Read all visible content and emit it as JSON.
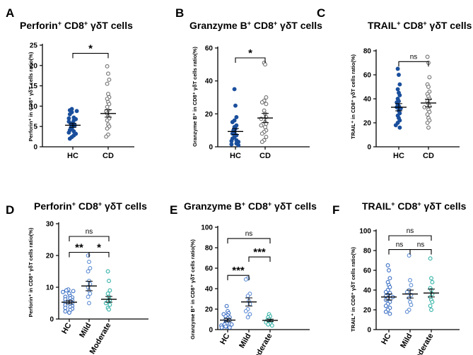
{
  "chart_data": [
    {
      "type": "scatter",
      "panel": "A",
      "title": [
        "Perforin",
        "+",
        " CD8",
        "+",
        " γδT cells"
      ],
      "ylabel": "Perforin⁺ in CD8⁺ γδT cells ratio(%)",
      "categories": [
        "HC",
        "CD"
      ],
      "ylim": [
        0,
        25
      ],
      "yticks": [
        0,
        5,
        10,
        15,
        20,
        25
      ],
      "rotated_labels": false,
      "series": [
        {
          "name": "HC",
          "mean": 5.3,
          "sem": 0.5,
          "color": "#1a4f9c",
          "fill": true,
          "values": [
            9.3,
            9,
            8.8,
            8.5,
            8,
            7.2,
            7,
            6.8,
            6.5,
            6.2,
            5.9,
            5.6,
            5.3,
            5,
            4.7,
            4.4,
            4.1,
            3.8,
            3.5,
            3.2,
            2.8,
            2.4,
            2
          ]
        },
        {
          "name": "CD",
          "mean": 8.2,
          "sem": 0.9,
          "color": "#707070",
          "fill": false,
          "values": [
            19.8,
            18,
            16.5,
            15.5,
            13,
            12.2,
            11.8,
            11,
            10.5,
            9.8,
            9,
            8.7,
            8.2,
            7.5,
            7,
            6.5,
            5.5,
            5,
            4.5,
            3,
            2.5
          ]
        }
      ],
      "comparisons": [
        {
          "from": 0,
          "to": 1,
          "label": "*",
          "y": 23
        }
      ]
    },
    {
      "type": "scatter",
      "panel": "B",
      "title": [
        "Granzyme B",
        "+",
        " CD8",
        "+",
        " γδT cells"
      ],
      "ylabel": "Granzyme B⁺ in CD8⁺ γδT cells ratio(%)",
      "categories": [
        "HC",
        "CD"
      ],
      "ylim": [
        0,
        60
      ],
      "yticks": [
        0,
        20,
        40,
        60
      ],
      "rotated_labels": false,
      "series": [
        {
          "name": "HC",
          "mean": 9.3,
          "sem": 1.8,
          "color": "#1a4f9c",
          "fill": true,
          "values": [
            35,
            25,
            18,
            16,
            15,
            13,
            12,
            11,
            10,
            9,
            8,
            7,
            6,
            5,
            4,
            3.5,
            3,
            2,
            1.5,
            1
          ]
        },
        {
          "name": "CD",
          "mean": 17.5,
          "sem": 2.8,
          "color": "#707070",
          "fill": false,
          "values": [
            51,
            50,
            30,
            28,
            27,
            26,
            22,
            20,
            18,
            17,
            15,
            14,
            13,
            12,
            10,
            9,
            8,
            6,
            4,
            3
          ]
        }
      ],
      "comparisons": [
        {
          "from": 0,
          "to": 1,
          "label": "*",
          "y": 54
        }
      ]
    },
    {
      "type": "scatter",
      "panel": "C",
      "title": [
        "TRAIL",
        "+",
        " CD8",
        "+",
        " γδT cells"
      ],
      "ylabel": "TRAIL⁺ in CD8⁺ γδT cells ratio(%)",
      "categories": [
        "HC",
        "CD"
      ],
      "ylim": [
        0,
        80
      ],
      "yticks": [
        0,
        20,
        40,
        60,
        80
      ],
      "rotated_labels": false,
      "series": [
        {
          "name": "HC",
          "mean": 33,
          "sem": 3,
          "color": "#1a4f9c",
          "fill": true,
          "values": [
            65,
            60,
            52,
            48,
            45,
            43,
            40,
            38,
            37,
            35,
            34,
            33,
            32,
            30,
            28,
            26,
            24,
            22,
            20,
            18,
            16
          ]
        },
        {
          "name": "CD",
          "mean": 36.5,
          "sem": 3.2,
          "color": "#707070",
          "fill": false,
          "values": [
            75,
            70,
            58,
            52,
            50,
            46,
            44,
            42,
            40,
            38,
            36,
            34,
            33,
            31,
            29,
            27,
            24,
            22,
            20,
            16
          ]
        }
      ],
      "comparisons": [
        {
          "from": 0,
          "to": 1,
          "label": "ns",
          "y": 71
        }
      ]
    },
    {
      "type": "scatter",
      "panel": "D",
      "title": [
        "Perforin",
        "+",
        " CD8",
        "+",
        " γδT cells"
      ],
      "ylabel": "Perforin⁺ in CD8⁺ γδT cells ratio(%)",
      "categories": [
        "HC",
        "Mild",
        "Moderate"
      ],
      "ylim": [
        0,
        30
      ],
      "yticks": [
        0,
        10,
        20,
        30
      ],
      "rotated_labels": true,
      "series": [
        {
          "name": "HC",
          "mean": 5.3,
          "sem": 0.5,
          "color": "#3b6fc4",
          "fill": false,
          "values": [
            9.3,
            9,
            8.8,
            8.5,
            8,
            7.2,
            7,
            6.8,
            6.5,
            6.2,
            5.9,
            5.6,
            5.3,
            5,
            4.7,
            4.4,
            4.1,
            3.8,
            3.5,
            3.2,
            2.8,
            2.4,
            2
          ]
        },
        {
          "name": "Mild",
          "mean": 10.4,
          "sem": 1.5,
          "color": "#5f8ed4",
          "fill": false,
          "values": [
            20,
            18,
            16,
            15,
            12,
            11,
            10,
            9,
            8,
            7,
            5
          ]
        },
        {
          "name": "Moderate",
          "mean": 6.2,
          "sem": 0.9,
          "color": "#34b3a8",
          "fill": false,
          "values": [
            15,
            12,
            9,
            8,
            7,
            6,
            5.5,
            5,
            4.5,
            3.5,
            3
          ]
        }
      ],
      "comparisons": [
        {
          "from": 0,
          "to": 1,
          "label": "**",
          "y": 21
        },
        {
          "from": 1,
          "to": 2,
          "label": "*",
          "y": 21
        },
        {
          "from": 0,
          "to": 2,
          "label": "ns",
          "y": 26
        }
      ]
    },
    {
      "type": "scatter",
      "panel": "E",
      "title": [
        "Granzyme B",
        "+",
        " CD8",
        "+",
        " γδT cells"
      ],
      "ylabel": "Granzyme B⁺ in CD8⁺ γδT cells ratio(%)",
      "categories": [
        "HC",
        "Mild",
        "Moderate"
      ],
      "ylim": [
        0,
        100
      ],
      "yticks": [
        0,
        20,
        40,
        60,
        80,
        100
      ],
      "rotated_labels": true,
      "series": [
        {
          "name": "HC",
          "mean": 9.3,
          "sem": 1.6,
          "color": "#3b6fc4",
          "fill": false,
          "values": [
            23,
            18,
            16,
            15,
            14,
            13,
            12,
            11,
            10,
            9,
            8,
            7,
            6,
            5,
            5,
            4,
            3,
            3,
            2,
            2
          ]
        },
        {
          "name": "Mild",
          "mean": 27,
          "sem": 4,
          "color": "#5f8ed4",
          "fill": false,
          "values": [
            50,
            49,
            35,
            33,
            28,
            25,
            20,
            18,
            15,
            12
          ]
        },
        {
          "name": "Moderate",
          "mean": 9,
          "sem": 1.2,
          "color": "#34b3a8",
          "fill": false,
          "values": [
            15,
            13,
            12,
            10,
            9,
            8,
            7,
            6,
            5,
            4
          ]
        }
      ],
      "comparisons": [
        {
          "from": 0,
          "to": 1,
          "label": "***",
          "y": 53
        },
        {
          "from": 1,
          "to": 2,
          "label": "***",
          "y": 71
        },
        {
          "from": 0,
          "to": 2,
          "label": "ns",
          "y": 89
        }
      ]
    },
    {
      "type": "scatter",
      "panel": "F",
      "title": [
        "TRAIL",
        "+",
        " CD8",
        "+",
        " γδT cells"
      ],
      "ylabel": "TRAIL⁺ in CD8⁺ γδT cells ratio(%)",
      "categories": [
        "HC",
        "Mild",
        "Moderate"
      ],
      "ylim": [
        0,
        100
      ],
      "yticks": [
        0,
        20,
        40,
        60,
        80,
        100
      ],
      "rotated_labels": true,
      "series": [
        {
          "name": "HC",
          "mean": 33,
          "sem": 3,
          "color": "#3b6fc4",
          "fill": false,
          "values": [
            65,
            60,
            52,
            48,
            45,
            43,
            40,
            38,
            37,
            35,
            34,
            33,
            32,
            30,
            28,
            26,
            24,
            22,
            20,
            18,
            16
          ]
        },
        {
          "name": "Mild",
          "mean": 36,
          "sem": 4,
          "color": "#5f8ed4",
          "fill": false,
          "values": [
            75,
            50,
            45,
            40,
            38,
            35,
            32,
            28,
            25,
            20,
            18
          ]
        },
        {
          "name": "Moderate",
          "mean": 37,
          "sem": 4,
          "color": "#34b3a8",
          "fill": false,
          "values": [
            72,
            52,
            48,
            42,
            40,
            36,
            33,
            30,
            28,
            24,
            20
          ]
        }
      ],
      "comparisons": [
        {
          "from": 0,
          "to": 1,
          "label": "ns",
          "y": 81
        },
        {
          "from": 1,
          "to": 2,
          "label": "ns",
          "y": 81
        },
        {
          "from": 0,
          "to": 2,
          "label": "ns",
          "y": 95
        }
      ]
    }
  ]
}
